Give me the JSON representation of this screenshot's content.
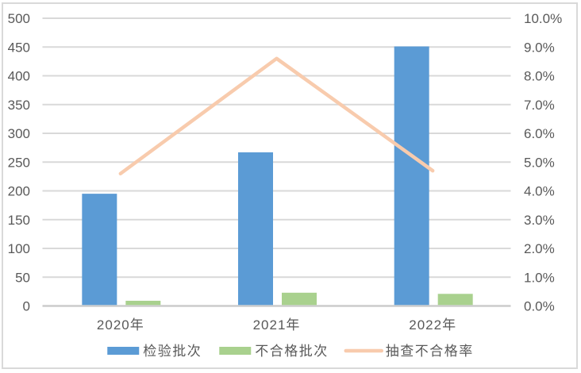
{
  "chart_data": {
    "type": "combo",
    "title": "",
    "categories": [
      "2020年",
      "2021年",
      "2022年"
    ],
    "series": [
      {
        "name": "检验批次",
        "type": "bar",
        "axis": "left",
        "color": "#5B9BD5",
        "values": [
          195,
          267,
          451
        ]
      },
      {
        "name": "不合格批次",
        "type": "bar",
        "axis": "left",
        "color": "#A9D18E",
        "values": [
          9,
          23,
          21
        ]
      },
      {
        "name": "抽查不合格率",
        "type": "line",
        "axis": "right",
        "color": "#F8CBAD",
        "values_percent": [
          4.6,
          8.6,
          4.7
        ]
      }
    ],
    "left_axis": {
      "min": 0,
      "max": 500,
      "step": 50,
      "tick_labels": [
        "0",
        "50",
        "100",
        "150",
        "200",
        "250",
        "300",
        "350",
        "400",
        "450",
        "500"
      ]
    },
    "right_axis": {
      "min": 0,
      "max": 10,
      "step": 1,
      "unit": "%",
      "tick_labels": [
        "0.0%",
        "1.0%",
        "2.0%",
        "3.0%",
        "4.0%",
        "5.0%",
        "6.0%",
        "7.0%",
        "8.0%",
        "9.0%",
        "10.0%"
      ]
    },
    "grid": true,
    "legend_position": "bottom"
  },
  "style": {
    "grid_color": "#D9D9D9",
    "axis_line_color": "#CCCCCC",
    "text_color": "#595959",
    "border_color": "#D9D9D9",
    "background": "#FFFFFF"
  }
}
